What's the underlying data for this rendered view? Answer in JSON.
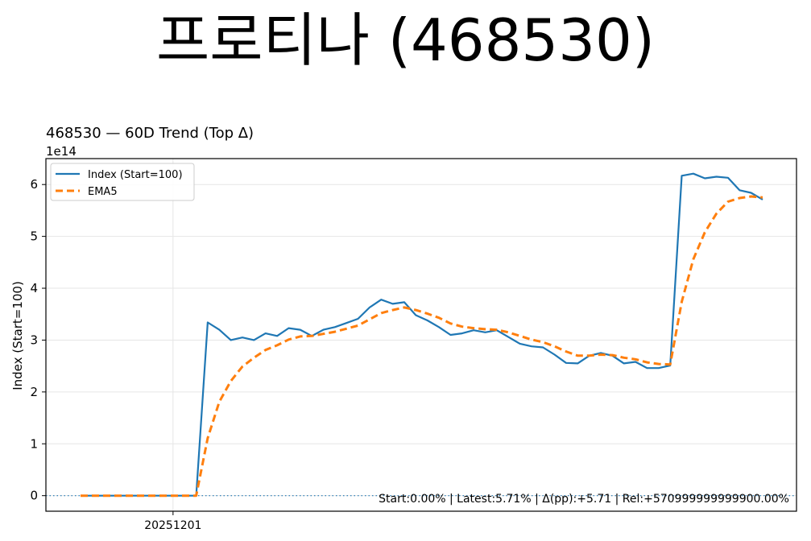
{
  "page": {
    "main_title": "프로티나 (468530)"
  },
  "chart_data": {
    "type": "line",
    "title": "468530 — 60D Trend (Top Δ)",
    "ylabel": "Index (Start=100)",
    "xlabel": "",
    "y_multiplier_label": "1e14",
    "y_scale_note": "values in units of 1e14",
    "ylim": [
      -0.3,
      6.5
    ],
    "yticks": [
      0,
      1,
      2,
      3,
      4,
      5,
      6
    ],
    "x_tick_labels": [
      {
        "index": 8,
        "label": "20251201"
      }
    ],
    "grid": true,
    "legend_position": "top-left",
    "baseline_y": 0,
    "annotation": "Start:0.00% | Latest:5.71% | Δ(pp):+5.71 | Rel:+570999999999900.00%",
    "series": [
      {
        "name": "Index (Start=100)",
        "color": "#1f77b4",
        "style": "solid",
        "values": [
          0,
          0,
          0,
          0,
          0,
          0,
          0,
          0,
          0,
          0,
          0,
          3.34,
          3.2,
          3.0,
          3.05,
          3.0,
          3.13,
          3.08,
          3.23,
          3.2,
          3.08,
          3.2,
          3.25,
          3.33,
          3.41,
          3.63,
          3.78,
          3.7,
          3.73,
          3.48,
          3.38,
          3.25,
          3.1,
          3.13,
          3.19,
          3.15,
          3.19,
          3.06,
          2.93,
          2.88,
          2.86,
          2.72,
          2.56,
          2.55,
          2.7,
          2.75,
          2.7,
          2.55,
          2.58,
          2.46,
          2.46,
          2.51,
          6.17,
          6.21,
          6.12,
          6.15,
          6.13,
          5.89,
          5.84,
          5.71
        ]
      },
      {
        "name": "EMA5",
        "color": "#ff7f0e",
        "style": "dashed",
        "values": [
          0,
          0,
          0,
          0,
          0,
          0,
          0,
          0,
          0,
          0,
          0,
          1.11,
          1.81,
          2.21,
          2.49,
          2.66,
          2.81,
          2.9,
          3.01,
          3.07,
          3.08,
          3.12,
          3.16,
          3.22,
          3.28,
          3.4,
          3.52,
          3.58,
          3.63,
          3.58,
          3.51,
          3.43,
          3.32,
          3.26,
          3.23,
          3.21,
          3.2,
          3.15,
          3.08,
          3.01,
          2.96,
          2.88,
          2.78,
          2.7,
          2.7,
          2.72,
          2.71,
          2.66,
          2.63,
          2.57,
          2.54,
          2.53,
          3.74,
          4.56,
          5.08,
          5.44,
          5.67,
          5.74,
          5.77,
          5.75
        ]
      }
    ]
  }
}
